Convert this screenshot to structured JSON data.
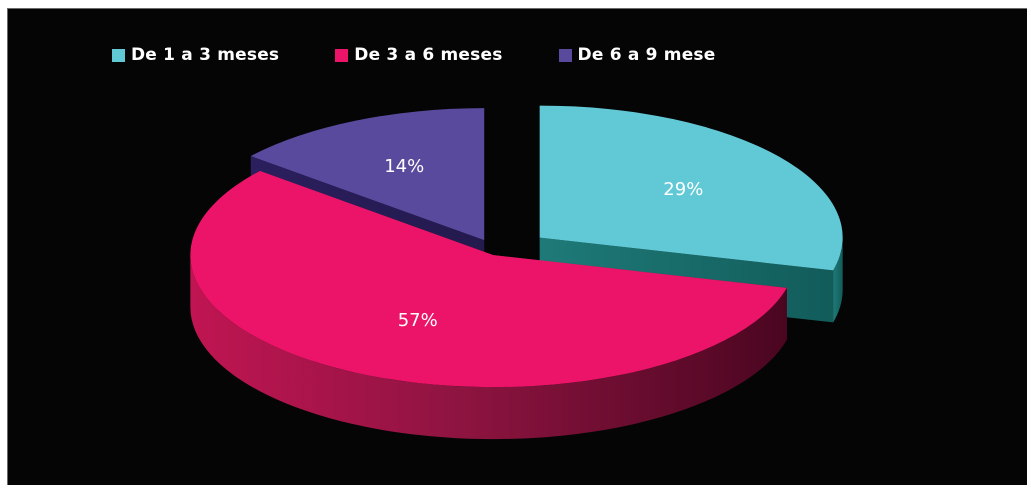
{
  "colors": {
    "background": "#050505",
    "slice_1_top": "#61C9D6",
    "slice_2_top": "#EC1468",
    "slice_3_top": "#5A4A9E"
  },
  "chart_data": {
    "type": "pie",
    "title": "",
    "three_d": true,
    "exploded": true,
    "legend_position": "top",
    "series": [
      {
        "name": "De 1 a 3 meses",
        "value": 29,
        "label": "29%",
        "color": "#61C9D6"
      },
      {
        "name": "De 3 a 6 meses",
        "value": 57,
        "label": "57%",
        "color": "#EC1468"
      },
      {
        "name": "De 6 a 9 mese",
        "value": 14,
        "label": "14%",
        "color": "#5A4A9E"
      }
    ]
  }
}
